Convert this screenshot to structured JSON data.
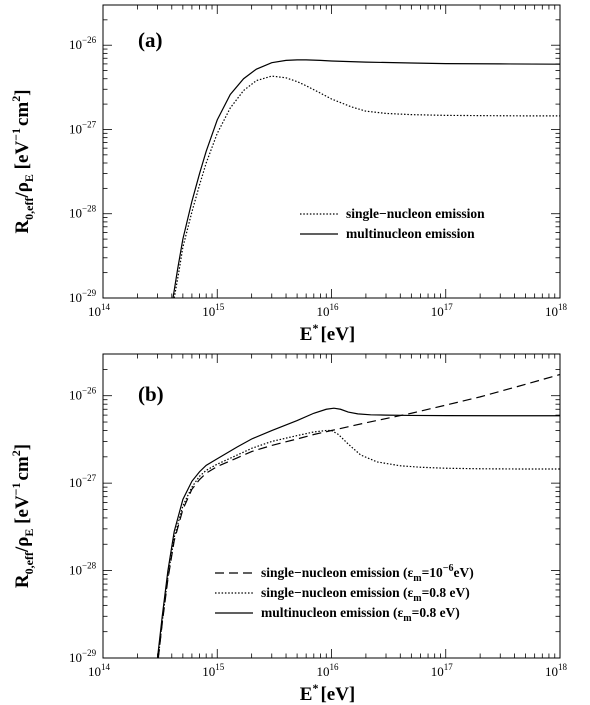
{
  "chart_data": [
    {
      "type": "line",
      "panel_label": "(a)",
      "xlabel": {
        "main": "E",
        "sup": "*",
        "unit": "[eV]"
      },
      "ylabel": {
        "main": "R",
        "sub1": "0,eff",
        "mid": "/ρ",
        "sub2": "E",
        "unit_open": "[eV",
        "unit_sup1": "−1",
        "unit_mid": "cm",
        "unit_sup2": "2",
        "unit_close": "]"
      },
      "x_scale": "log",
      "y_scale": "log",
      "xlim": [
        100000000000000.0,
        1e+18
      ],
      "ylim": [
        1e-29,
        3e-26
      ],
      "x_ticks": [
        {
          "base": "10",
          "exp": "14",
          "value": 100000000000000.0
        },
        {
          "base": "10",
          "exp": "15",
          "value": 1000000000000000.0
        },
        {
          "base": "10",
          "exp": "16",
          "value": 1e+16
        },
        {
          "base": "10",
          "exp": "17",
          "value": 1e+17
        },
        {
          "base": "10",
          "exp": "18",
          "value": 1e+18
        }
      ],
      "y_ticks": [
        {
          "base": "10",
          "exp": "−29",
          "value": 1e-29
        },
        {
          "base": "10",
          "exp": "−28",
          "value": 1e-28
        },
        {
          "base": "10",
          "exp": "−27",
          "value": 1e-27
        },
        {
          "base": "10",
          "exp": "−26",
          "value": 1e-26
        }
      ],
      "legend_position": "lower-right",
      "series": [
        {
          "name": "single−nucleon emission",
          "name_suffix": "",
          "style": "dotted",
          "x": [
            420000000000000.0,
            460000000000000.0,
            500000000000000.0,
            600000000000000.0,
            700000000000000.0,
            800000000000000.0,
            1000000000000000.0,
            1300000000000000.0,
            1700000000000000.0,
            2200000000000000.0,
            3000000000000000.0,
            4000000000000000.0,
            5000000000000000.0,
            6000000000000000.0,
            8000000000000000.0,
            1e+16,
            1.5e+16,
            2e+16,
            3e+16,
            5e+16,
            1e+17,
            2e+17,
            5e+17,
            1e+18
          ],
          "y": [
            1e-29,
            2e-29,
            4e-29,
            1.05e-28,
            2.2e-28,
            4e-28,
            9e-28,
            1.8e-27,
            2.9e-27,
            3.8e-27,
            4.3e-27,
            4.1e-27,
            3.7e-27,
            3.3e-27,
            2.7e-27,
            2.3e-27,
            1.85e-27,
            1.65e-27,
            1.55e-27,
            1.5e-27,
            1.47e-27,
            1.46e-27,
            1.45e-27,
            1.45e-27
          ]
        },
        {
          "name": "multinucleon emission",
          "name_suffix": "",
          "style": "solid",
          "x": [
            410000000000000.0,
            450000000000000.0,
            500000000000000.0,
            600000000000000.0,
            700000000000000.0,
            800000000000000.0,
            1000000000000000.0,
            1300000000000000.0,
            1700000000000000.0,
            2200000000000000.0,
            3000000000000000.0,
            4000000000000000.0,
            5000000000000000.0,
            6000000000000000.0,
            8000000000000000.0,
            1e+16,
            2e+16,
            5e+16,
            1e+17,
            3e+17,
            1e+18
          ],
          "y": [
            1e-29,
            2.2e-29,
            5e-29,
            1.4e-28,
            3e-28,
            5.5e-28,
            1.3e-27,
            2.6e-27,
            4e-27,
            5.2e-27,
            6.2e-27,
            6.6e-27,
            6.7e-27,
            6.7e-27,
            6.6e-27,
            6.5e-27,
            6.3e-27,
            6.15e-27,
            6.05e-27,
            6e-27,
            5.95e-27
          ]
        }
      ]
    },
    {
      "type": "line",
      "panel_label": "(b)",
      "xlabel": {
        "main": "E",
        "sup": "*",
        "unit": "[eV]"
      },
      "ylabel": {
        "main": "R",
        "sub1": "0,eff",
        "mid": "/ρ",
        "sub2": "E",
        "unit_open": "[eV",
        "unit_sup1": "−1",
        "unit_mid": "cm",
        "unit_sup2": "2",
        "unit_close": "]"
      },
      "x_scale": "log",
      "y_scale": "log",
      "xlim": [
        100000000000000.0,
        1e+18
      ],
      "ylim": [
        1e-29,
        3e-26
      ],
      "x_ticks": [
        {
          "base": "10",
          "exp": "14",
          "value": 100000000000000.0
        },
        {
          "base": "10",
          "exp": "15",
          "value": 1000000000000000.0
        },
        {
          "base": "10",
          "exp": "16",
          "value": 1e+16
        },
        {
          "base": "10",
          "exp": "17",
          "value": 1e+17
        },
        {
          "base": "10",
          "exp": "18",
          "value": 1e+18
        }
      ],
      "y_ticks": [
        {
          "base": "10",
          "exp": "−29",
          "value": 1e-29
        },
        {
          "base": "10",
          "exp": "−28",
          "value": 1e-28
        },
        {
          "base": "10",
          "exp": "−27",
          "value": 1e-27
        },
        {
          "base": "10",
          "exp": "−26",
          "value": 1e-26
        }
      ],
      "legend_position": "lower-right",
      "series": [
        {
          "name": "single−nucleon emission",
          "name_suffix": {
            "open": " (ε",
            "sub": "m",
            "mid": "=10",
            "sup": "−6",
            "close": "eV)"
          },
          "style": "dashed",
          "x": [
            305000000000000.0,
            330000000000000.0,
            370000000000000.0,
            420000000000000.0,
            500000000000000.0,
            600000000000000.0,
            700000000000000.0,
            800000000000000.0,
            1000000000000000.0,
            1500000000000000.0,
            2000000000000000.0,
            3000000000000000.0,
            5000000000000000.0,
            7000000000000000.0,
            1e+16,
            2e+16,
            5e+16,
            1e+17,
            2e+17,
            5e+17,
            1e+18
          ],
          "y": [
            1e-29,
            2.5e-29,
            8e-29,
            2.2e-28,
            5e-28,
            8.5e-28,
            1.1e-27,
            1.3e-27,
            1.55e-27,
            1.95e-27,
            2.3e-27,
            2.7e-27,
            3.2e-27,
            3.6e-27,
            4e-27,
            4.9e-27,
            6.3e-27,
            7.8e-27,
            9.7e-27,
            1.35e-26,
            1.75e-26
          ]
        },
        {
          "name": "single−nucleon emission",
          "name_suffix": {
            "open": " (ε",
            "sub": "m",
            "mid": "=0.8 eV)",
            "sup": "",
            "close": ""
          },
          "style": "dotted",
          "x": [
            305000000000000.0,
            330000000000000.0,
            370000000000000.0,
            420000000000000.0,
            500000000000000.0,
            600000000000000.0,
            700000000000000.0,
            800000000000000.0,
            1000000000000000.0,
            1500000000000000.0,
            2000000000000000.0,
            3000000000000000.0,
            5000000000000000.0,
            7000000000000000.0,
            9000000000000000.0,
            1e+16,
            1.15e+16,
            1.4e+16,
            1.8e+16,
            2.5e+16,
            4e+16,
            6e+16,
            1e+17,
            2e+17,
            5e+17,
            1e+18
          ],
          "y": [
            1e-29,
            2.6e-29,
            8.5e-29,
            2.4e-28,
            5.5e-28,
            9e-28,
            1.2e-27,
            1.4e-27,
            1.65e-27,
            2.1e-27,
            2.5e-27,
            3e-27,
            3.5e-27,
            3.85e-27,
            4e-27,
            4e-27,
            3.6e-27,
            2.8e-27,
            2.1e-27,
            1.75e-27,
            1.58e-27,
            1.52e-27,
            1.48e-27,
            1.46e-27,
            1.45e-27,
            1.45e-27
          ]
        },
        {
          "name": "multinucleon emission",
          "name_suffix": {
            "open": " (ε",
            "sub": "m",
            "mid": "=0.8 eV)",
            "sup": "",
            "close": ""
          },
          "style": "solid",
          "x": [
            300000000000000.0,
            330000000000000.0,
            370000000000000.0,
            420000000000000.0,
            500000000000000.0,
            600000000000000.0,
            700000000000000.0,
            800000000000000.0,
            1000000000000000.0,
            1500000000000000.0,
            2000000000000000.0,
            3000000000000000.0,
            5000000000000000.0,
            7000000000000000.0,
            9000000000000000.0,
            1.05e+16,
            1.2e+16,
            1.4e+16,
            1.7e+16,
            2.2e+16,
            3e+16,
            5e+16,
            1e+17,
            3e+17,
            1e+18
          ],
          "y": [
            1e-29,
            3e-29,
            1e-28,
            2.8e-28,
            6.5e-28,
            1.05e-27,
            1.35e-27,
            1.6e-27,
            1.9e-27,
            2.6e-27,
            3.2e-27,
            4e-27,
            5.2e-27,
            6.3e-27,
            7e-27,
            7.2e-27,
            7e-27,
            6.5e-27,
            6.2e-27,
            6.05e-27,
            6e-27,
            5.95e-27,
            5.92e-27,
            5.9e-27,
            5.9e-27
          ]
        }
      ]
    }
  ]
}
